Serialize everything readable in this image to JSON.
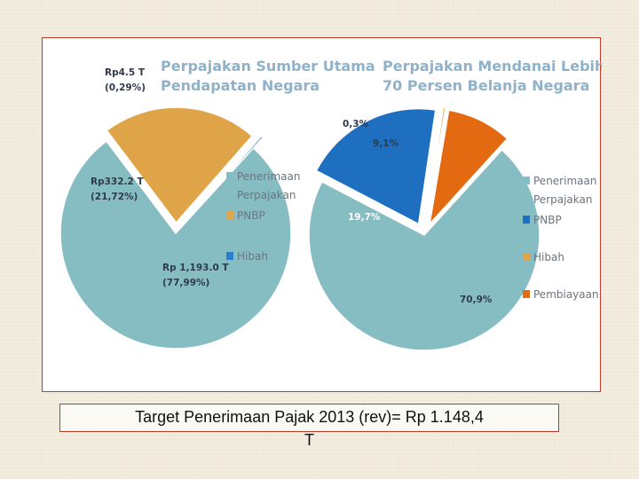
{
  "chart_data": [
    {
      "type": "pie",
      "title_lines": [
        "Perpajakan Sumber Utama",
        "Pendapatan Negara"
      ],
      "slices": [
        {
          "label": "Penerimaan Perpajakan",
          "value": 77.99,
          "data_lines": [
            "Rp 1,193.0 T",
            "(77,99%)"
          ],
          "color": "#86bdc3"
        },
        {
          "label": "PNBP",
          "value": 21.72,
          "data_lines": [
            "Rp332.2 T",
            "(21,72%)"
          ],
          "color": "#e0a448"
        },
        {
          "label": "Hibah",
          "value": 0.29,
          "data_lines": [
            "Rp4.5 T",
            "(0,29%)"
          ],
          "color": "#2b7fc9"
        }
      ],
      "legend": [
        {
          "lines": [
            "Penerimaan",
            "Perpajakan"
          ],
          "color": "#86bdc3"
        },
        {
          "lines": [
            "PNBP"
          ],
          "color": "#e0a448"
        },
        {
          "lines": [
            "Hibah"
          ],
          "color": "#2b7fc9"
        }
      ],
      "legend_position": "right"
    },
    {
      "type": "pie",
      "title_lines": [
        "Perpajakan Mendanai Lebih dari",
        "70 Persen Belanja Negara"
      ],
      "slices": [
        {
          "label": "Penerimaan Perpajakan",
          "value": 70.9,
          "data_lines": [
            "70,9%"
          ],
          "color": "#86bdc3"
        },
        {
          "label": "PNBP",
          "value": 19.7,
          "data_lines": [
            "19,7%"
          ],
          "color": "#1f6fc0"
        },
        {
          "label": "Hibah",
          "value": 0.3,
          "data_lines": [
            "0,3%"
          ],
          "color": "#e0a448"
        },
        {
          "label": "Pembiayaan",
          "value": 9.1,
          "data_lines": [
            "9,1%"
          ],
          "color": "#e46a12"
        }
      ],
      "legend": [
        {
          "lines": [
            "Penerimaan",
            "Perpajakan"
          ],
          "color": "#86bdc3"
        },
        {
          "lines": [
            "PNBP"
          ],
          "color": "#1f6fc0"
        },
        {
          "lines": [
            "Hibah"
          ],
          "color": "#e0a448"
        },
        {
          "lines": [
            "Pembiayaan"
          ],
          "color": "#e46a12"
        }
      ],
      "legend_position": "right"
    }
  ],
  "caption": {
    "line1": "Target Penerimaan Pajak 2013 (rev)= Rp 1.148,4",
    "line2": "T"
  }
}
